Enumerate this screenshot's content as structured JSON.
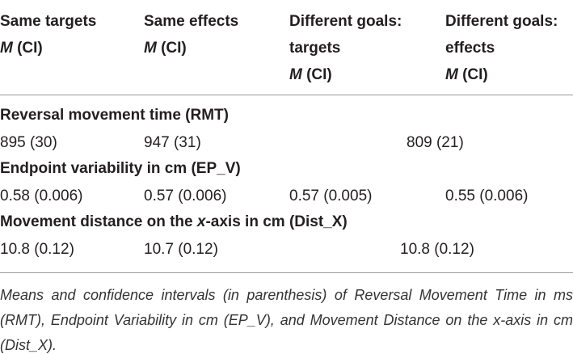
{
  "table": {
    "columns": [
      {
        "lines": [
          "Same targets"
        ],
        "stat": [
          "M",
          "(CI)"
        ]
      },
      {
        "lines": [
          "Same effects"
        ],
        "stat": [
          "M",
          "(CI)"
        ]
      },
      {
        "lines": [
          "Different goals:",
          "targets"
        ],
        "stat": [
          "M",
          "(CI)"
        ]
      },
      {
        "lines": [
          "Different goals:",
          "effects"
        ],
        "stat": [
          "M",
          "(CI)"
        ]
      }
    ],
    "sections": [
      {
        "heading": [
          {
            "text": "Reversal movement time (RMT)"
          }
        ],
        "cells": [
          "895 (30)",
          "947 (31)",
          "809 (21)"
        ]
      },
      {
        "heading": [
          {
            "text": "Endpoint variability in cm (EP_V)"
          }
        ],
        "cells": [
          "0.58 (0.006)",
          "0.57 (0.006)",
          "0.57 (0.005)",
          "0.55 (0.006)"
        ]
      },
      {
        "heading": [
          {
            "text": "Movement distance on the "
          },
          {
            "text": "x",
            "italic": true
          },
          {
            "text": "-axis in cm (Dist_X)"
          }
        ],
        "cells": [
          "10.8 (0.12)",
          "10.7 (0.12)",
          "10.8 (0.12)"
        ]
      }
    ]
  },
  "caption": "Means and confidence intervals (in parenthesis) of Reversal Movement Time in ms (RMT), Endpoint Variability in cm (EP_V), and Movement Distance on the x-axis in cm (Dist_X)."
}
